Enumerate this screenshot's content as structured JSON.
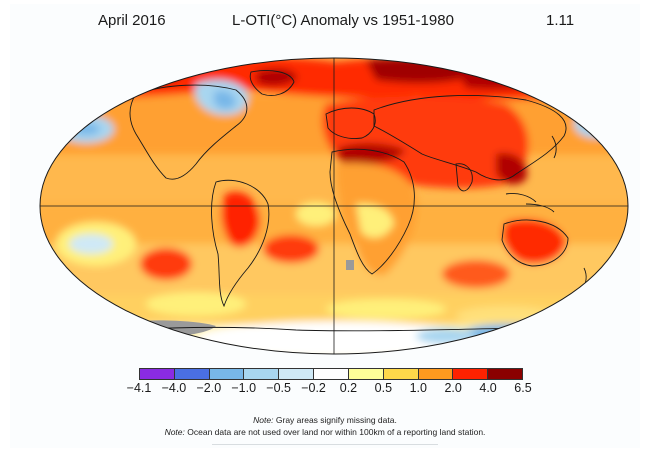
{
  "header": {
    "left": "April 2016",
    "center": "L-OTI(°C) Anomaly vs 1951-1980",
    "right": "1.11"
  },
  "legend": {
    "labels": [
      "−4.1",
      "−4.0",
      "−2.0",
      "−1.0",
      "−0.5",
      "−0.2",
      "0.2",
      "0.5",
      "1.0",
      "2.0",
      "4.0",
      "6.5"
    ],
    "colors": [
      "#8a2be2",
      "#4a6fe3",
      "#78b7e8",
      "#a8d6f0",
      "#cfe9f6",
      "#ffffff",
      "#ffff99",
      "#ffd84a",
      "#ff9a1f",
      "#ff2200",
      "#8b0000"
    ]
  },
  "notes": {
    "line1_prefix": "Note:",
    "line1_text": "Gray areas signify missing data.",
    "line2_prefix": "Note:",
    "line2_text": "Ocean data are not used over land nor within 100km of a reporting land station."
  }
}
